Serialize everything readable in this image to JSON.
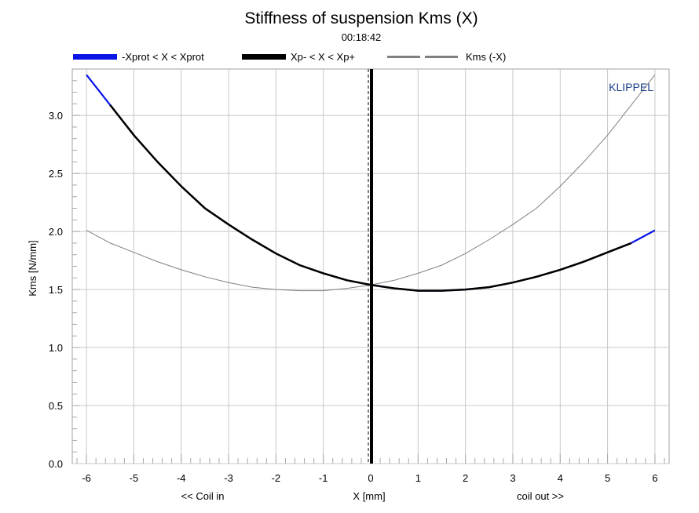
{
  "chart_data": {
    "type": "line",
    "title": "Stiffness of suspension Kms (X)",
    "subtitle": "00:18:42",
    "brand": "KLIPPEL",
    "xlabel": "X [mm]",
    "xlabel_left": "<< Coil in",
    "xlabel_right": "coil out >>",
    "ylabel": "Kms [N/mm]",
    "xlim": [
      -6.3,
      6.3
    ],
    "ylim": [
      0,
      3.4
    ],
    "xticks": [
      -6,
      -5,
      -4,
      -3,
      -2,
      -1,
      0,
      1,
      2,
      3,
      4,
      5,
      6
    ],
    "yticks": [
      0.0,
      0.5,
      1.0,
      1.5,
      2.0,
      2.5,
      3.0
    ],
    "ytick_labels": [
      "0.0",
      "0.5",
      "1.0",
      "1.5",
      "2.0",
      "2.5",
      "3.0"
    ],
    "grid": true,
    "legend_position": "top",
    "marker_x": 0,
    "colors": {
      "xprot": "#0a14e6",
      "xp": "#000000",
      "mirror": "#808080",
      "grid": "#c8c8c8",
      "brand": "#1f3f8f"
    },
    "series": [
      {
        "name": "-Xprot < X < Xprot",
        "x": [
          -6,
          -5.5,
          -5,
          -4.5,
          -4,
          -3.5,
          -3,
          -2.5,
          -2,
          -1.5,
          -1,
          -0.5,
          0,
          0.5,
          1,
          1.5,
          2,
          2.5,
          3,
          3.5,
          4,
          4.5,
          5,
          5.5,
          6
        ],
        "y": [
          3.35,
          3.09,
          2.83,
          2.6,
          2.39,
          2.2,
          2.06,
          1.93,
          1.81,
          1.71,
          1.64,
          1.58,
          1.54,
          1.51,
          1.49,
          1.49,
          1.5,
          1.52,
          1.56,
          1.61,
          1.67,
          1.74,
          1.82,
          1.9,
          2.01
        ]
      },
      {
        "name": "Xp- < X < Xp+",
        "x": [
          -5.5,
          -5,
          -4.5,
          -4,
          -3.5,
          -3,
          -2.5,
          -2,
          -1.5,
          -1,
          -0.5,
          0,
          0.5,
          1,
          1.5,
          2,
          2.5,
          3,
          3.5,
          4,
          4.5,
          5,
          5.5
        ],
        "y": [
          3.09,
          2.83,
          2.6,
          2.39,
          2.2,
          2.06,
          1.93,
          1.81,
          1.71,
          1.64,
          1.58,
          1.54,
          1.51,
          1.49,
          1.49,
          1.5,
          1.52,
          1.56,
          1.61,
          1.67,
          1.74,
          1.82,
          1.9
        ]
      },
      {
        "name": "Kms (-X)",
        "x": [
          -6,
          -5.5,
          -5,
          -4.5,
          -4,
          -3.5,
          -3,
          -2.5,
          -2,
          -1.5,
          -1,
          -0.5,
          0,
          0.5,
          1,
          1.5,
          2,
          2.5,
          3,
          3.5,
          4,
          4.5,
          5,
          5.5,
          6
        ],
        "y": [
          2.01,
          1.9,
          1.82,
          1.74,
          1.67,
          1.61,
          1.56,
          1.52,
          1.5,
          1.49,
          1.49,
          1.51,
          1.54,
          1.58,
          1.64,
          1.71,
          1.81,
          1.93,
          2.06,
          2.2,
          2.39,
          2.6,
          2.83,
          3.09,
          3.35
        ]
      }
    ]
  }
}
